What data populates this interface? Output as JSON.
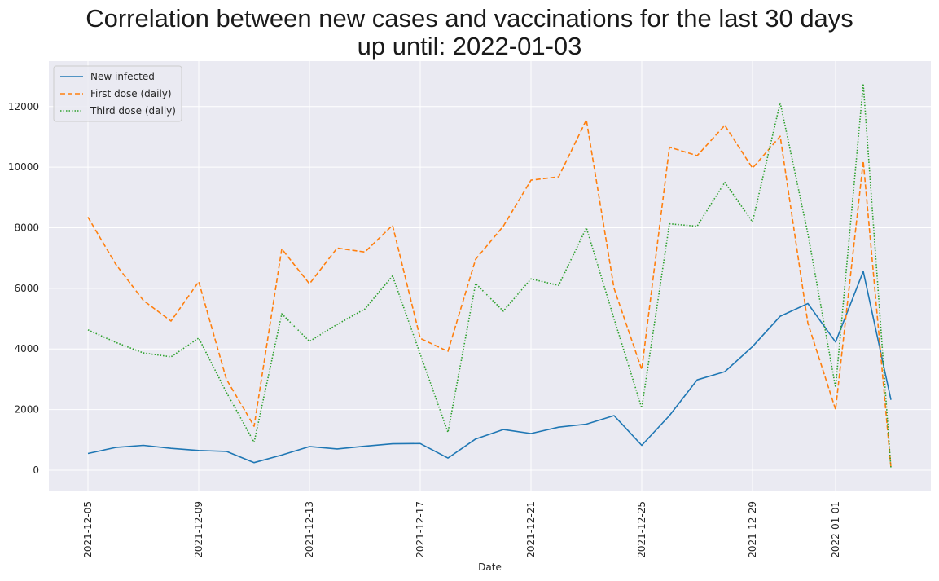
{
  "chart_data": {
    "type": "line",
    "title_line1": "Correlation between new cases and vaccinations for the last 30 days",
    "title_line2": "up until: 2022-01-03",
    "xlabel": "Date",
    "ylabel": "",
    "ylim": [
      -700,
      13500
    ],
    "yticks": [
      0,
      2000,
      4000,
      6000,
      8000,
      10000,
      12000
    ],
    "xtick_labels": [
      "2021-12-05",
      "2021-12-09",
      "2021-12-13",
      "2021-12-17",
      "2021-12-21",
      "2021-12-25",
      "2021-12-29",
      "2022-01-01"
    ],
    "xtick_indices": [
      0,
      4,
      8,
      12,
      16,
      20,
      24,
      27
    ],
    "x": [
      "2021-12-05",
      "2021-12-06",
      "2021-12-07",
      "2021-12-08",
      "2021-12-09",
      "2021-12-10",
      "2021-12-11",
      "2021-12-12",
      "2021-12-13",
      "2021-12-14",
      "2021-12-15",
      "2021-12-16",
      "2021-12-17",
      "2021-12-18",
      "2021-12-19",
      "2021-12-20",
      "2021-12-21",
      "2021-12-22",
      "2021-12-23",
      "2021-12-24",
      "2021-12-25",
      "2021-12-26",
      "2021-12-27",
      "2021-12-28",
      "2021-12-29",
      "2021-12-30",
      "2021-12-31",
      "2022-01-01",
      "2022-01-02",
      "2022-01-03"
    ],
    "grid": true,
    "legend_position": "top-left",
    "series": [
      {
        "name": "New infected",
        "color": "#1f77b4",
        "style": "solid",
        "values": [
          550,
          750,
          820,
          720,
          650,
          620,
          250,
          500,
          780,
          700,
          790,
          870,
          880,
          400,
          1030,
          1340,
          1210,
          1420,
          1520,
          1800,
          820,
          1800,
          2980,
          3250,
          4080,
          5080,
          5500,
          4230,
          6560,
          2320
        ]
      },
      {
        "name": "First dose (daily)",
        "color": "#ff7f0e",
        "style": "dashed",
        "values": [
          8350,
          6800,
          5600,
          4920,
          6220,
          3000,
          1450,
          7300,
          6150,
          7330,
          7200,
          8080,
          4350,
          3920,
          6960,
          8050,
          9570,
          9680,
          11560,
          6000,
          3320,
          10660,
          10380,
          11380,
          9970,
          11020,
          4850,
          2000,
          10200,
          80
        ]
      },
      {
        "name": "Third dose (daily)",
        "color": "#2ca02c",
        "style": "dotted",
        "values": [
          4630,
          4220,
          3870,
          3740,
          4360,
          2570,
          920,
          5160,
          4250,
          4810,
          5320,
          6410,
          3830,
          1250,
          6160,
          5250,
          6310,
          6100,
          8000,
          5000,
          2050,
          8130,
          8050,
          9500,
          8190,
          12130,
          7800,
          2730,
          12750,
          50
        ]
      }
    ]
  }
}
